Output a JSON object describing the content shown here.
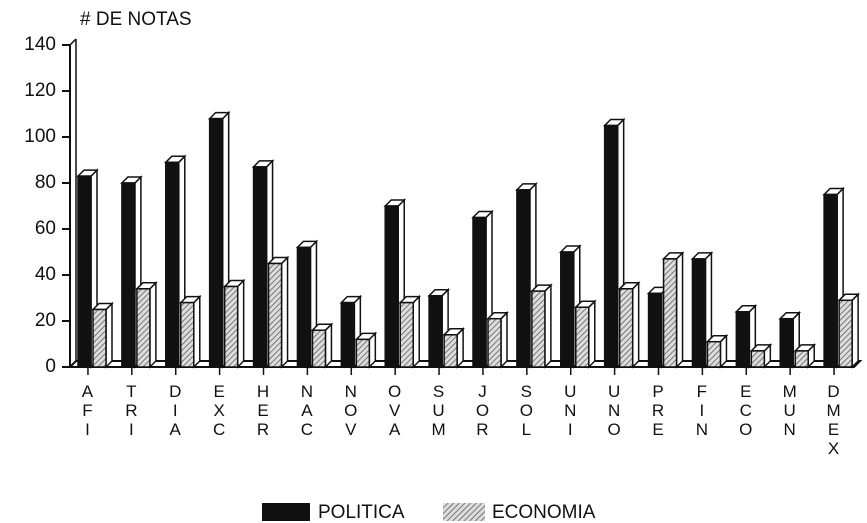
{
  "chart_data": {
    "type": "bar",
    "ylabel": "# DE NOTAS",
    "categories": [
      "AFI",
      "TRI",
      "DIA",
      "EXC",
      "HER",
      "NAC",
      "NOV",
      "OVA",
      "SUM",
      "JOR",
      "SOL",
      "UNI",
      "UNO",
      "PRE",
      "FIN",
      "ECO",
      "MUN",
      "DMEX"
    ],
    "series": [
      {
        "name": "POLITICA",
        "color": "#111111",
        "values": [
          83,
          80,
          89,
          108,
          87,
          52,
          28,
          70,
          31,
          65,
          77,
          50,
          105,
          32,
          47,
          24,
          21,
          75
        ]
      },
      {
        "name": "ECONOMIA",
        "color": "#777777",
        "values": [
          25,
          34,
          28,
          35,
          45,
          16,
          12,
          28,
          14,
          21,
          33,
          26,
          34,
          47,
          11,
          7,
          7,
          29
        ]
      }
    ],
    "ylim": [
      0,
      140
    ],
    "yticks": [
      0,
      20,
      40,
      60,
      80,
      100,
      120,
      140
    ]
  }
}
